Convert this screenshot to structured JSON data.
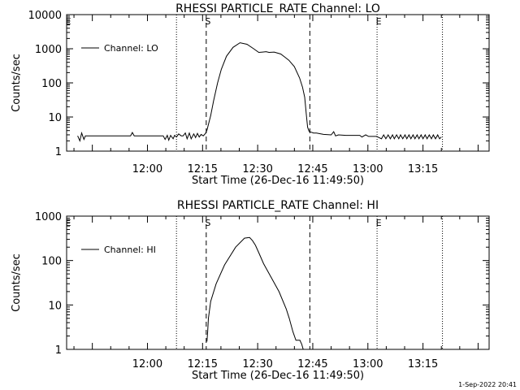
{
  "footer": {
    "timestamp": "1-Sep-2022 20:41"
  },
  "chart_data": [
    {
      "type": "line",
      "title": "RHESSI PARTICLE_RATE Channel: LO",
      "xlabel": "Start Time (26-Dec-16 11:49:50)",
      "ylabel": "Counts/sec",
      "yscale": "log",
      "ylim": [
        1,
        10000
      ],
      "xlim_minutes": [
        -12,
        103
      ],
      "x_tick_minutes": [
        10,
        25,
        40,
        55,
        70,
        85
      ],
      "x_tick_labels": [
        "12:00",
        "12:15",
        "12:30",
        "12:45",
        "13:00",
        "13:15"
      ],
      "y_tick_values": [
        1,
        10,
        100,
        1000,
        10000
      ],
      "y_tick_labels": [
        "1",
        "10",
        "100",
        "1000",
        "10000"
      ],
      "legend": {
        "position": "top-left",
        "label": "Channel: LO"
      },
      "markers": [
        {
          "label": "E",
          "x": -12,
          "style": "dotted"
        },
        {
          "label": "",
          "x": 17.9,
          "style": "dotted"
        },
        {
          "label": "S",
          "x": 26.0,
          "style": "dashed"
        },
        {
          "label": "",
          "x": 54.2,
          "style": "dashed"
        },
        {
          "label": "E",
          "x": 72.5,
          "style": "dotted"
        },
        {
          "label": "",
          "x": 90.3,
          "style": "dotted"
        }
      ],
      "series": [
        {
          "name": "Channel: LO",
          "x": [
            -9.0,
            -8.4,
            -7.9,
            -7.3,
            -6.9,
            -6.4,
            -5.9,
            -5.3,
            0,
            5.4,
            5.9,
            6.4,
            10,
            14.3,
            14.8,
            15.4,
            15.8,
            16.3,
            17,
            17.4,
            17.9,
            18.5,
            19.2,
            19.7,
            20.3,
            20.8,
            21.4,
            21.9,
            22.6,
            23.1,
            23.6,
            24.1,
            24.6,
            25.2,
            25.8,
            26.2,
            27.2,
            28.0,
            29.1,
            30.1,
            31.5,
            33.3,
            35.2,
            37.1,
            38.9,
            40.3,
            41.3,
            42.3,
            43.1,
            44.5,
            46.3,
            47.5,
            48.5,
            50.0,
            51.4,
            52.2,
            52.8,
            53.3,
            53.6,
            54.0,
            54.2,
            55.2,
            56.0,
            57.9,
            60.0,
            60.7,
            61.2,
            62.0,
            64.0,
            67.8,
            68.4,
            69.4,
            70.2,
            71.1,
            72.4,
            73.7,
            74.3,
            74.9,
            75.5,
            76.1,
            76.7,
            77.2,
            77.8,
            78.4,
            78.9,
            79.5,
            80.1,
            80.6,
            81.2,
            81.7,
            82.3,
            82.8,
            83.4,
            83.9,
            84.5,
            85.0,
            85.6,
            86.1,
            86.7,
            87.3,
            87.8,
            88.4,
            89.0,
            89.5,
            90.0
          ],
          "y": [
            2.8,
            2.0,
            3.4,
            2.2,
            2.8,
            2.8,
            2.8,
            2.8,
            2.8,
            2.8,
            3.5,
            2.8,
            2.8,
            2.8,
            2.2,
            2.9,
            2.1,
            2.9,
            2.3,
            2.9,
            2.6,
            3.2,
            2.8,
            2.8,
            3.4,
            2.3,
            3.4,
            2.3,
            3.2,
            2.5,
            3.3,
            2.6,
            3.1,
            2.8,
            3.3,
            4.1,
            11,
            30,
            100,
            250,
            600,
            1100,
            1500,
            1350,
            1000,
            780,
            800,
            820,
            780,
            800,
            700,
            560,
            460,
            300,
            140,
            75,
            38,
            10,
            5,
            3.8,
            3.7,
            3.4,
            3.4,
            3.1,
            3.0,
            3.7,
            2.8,
            3.0,
            2.9,
            2.9,
            2.6,
            3.0,
            2.7,
            2.7,
            2.7,
            2.3,
            3.0,
            2.3,
            3.0,
            2.3,
            3.0,
            2.3,
            3.0,
            2.3,
            3.0,
            2.3,
            3.0,
            2.3,
            3.0,
            2.3,
            3.0,
            2.3,
            3.0,
            2.3,
            3.0,
            2.3,
            3.0,
            2.3,
            3.0,
            2.3,
            3.0,
            2.3,
            3.0,
            2.3,
            2.6
          ]
        }
      ]
    },
    {
      "type": "line",
      "title": "RHESSI PARTICLE_RATE Channel: HI",
      "xlabel": "Start Time (26-Dec-16 11:49:50)",
      "ylabel": "Counts/sec",
      "yscale": "log",
      "ylim": [
        1,
        1000
      ],
      "xlim_minutes": [
        -12,
        103
      ],
      "x_tick_minutes": [
        10,
        25,
        40,
        55,
        70,
        85
      ],
      "x_tick_labels": [
        "12:00",
        "12:15",
        "12:30",
        "12:45",
        "13:00",
        "13:15"
      ],
      "y_tick_values": [
        1,
        10,
        100,
        1000
      ],
      "y_tick_labels": [
        "1",
        "10",
        "100",
        "1000"
      ],
      "legend": {
        "position": "top-left",
        "label": "Channel: HI"
      },
      "markers": [
        {
          "label": "E",
          "x": -12,
          "style": "dotted"
        },
        {
          "label": "",
          "x": 17.9,
          "style": "dotted"
        },
        {
          "label": "S",
          "x": 26.0,
          "style": "dashed"
        },
        {
          "label": "",
          "x": 54.2,
          "style": "dashed"
        },
        {
          "label": "E",
          "x": 72.5,
          "style": "dotted"
        },
        {
          "label": "",
          "x": 90.3,
          "style": "dotted"
        }
      ],
      "series": [
        {
          "name": "Channel: HI",
          "x": [
            26.2,
            26.4,
            26.6,
            27.2,
            28.7,
            31.0,
            34.0,
            36.4,
            37.8,
            38.6,
            39.4,
            40.3,
            41.6,
            43.8,
            45.8,
            47.8,
            48.6,
            49.6,
            50.4,
            51.5,
            52.0,
            52.4
          ],
          "y": [
            1.5,
            2.5,
            5,
            12,
            30,
            80,
            200,
            320,
            330,
            280,
            220,
            150,
            85,
            40,
            20,
            8,
            5,
            2.5,
            1.6,
            1.6,
            1.3,
            1.0
          ]
        }
      ]
    }
  ]
}
